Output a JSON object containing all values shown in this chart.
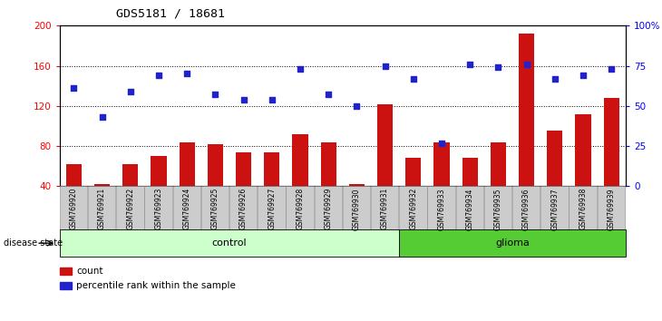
{
  "title": "GDS5181 / 18681",
  "samples": [
    "GSM769920",
    "GSM769921",
    "GSM769922",
    "GSM769923",
    "GSM769924",
    "GSM769925",
    "GSM769926",
    "GSM769927",
    "GSM769928",
    "GSM769929",
    "GSM769930",
    "GSM769931",
    "GSM769932",
    "GSM769933",
    "GSM769934",
    "GSM769935",
    "GSM769936",
    "GSM769937",
    "GSM769938",
    "GSM769939"
  ],
  "count": [
    62,
    42,
    62,
    70,
    84,
    82,
    74,
    74,
    92,
    84,
    42,
    122,
    68,
    84,
    68,
    84,
    192,
    95,
    112,
    128
  ],
  "percentile_pct": [
    61,
    43,
    59,
    69,
    70,
    57,
    54,
    54,
    73,
    57,
    50,
    75,
    67,
    27,
    76,
    74,
    76,
    67,
    69,
    73
  ],
  "control_count": 12,
  "ylim_left": [
    40,
    200
  ],
  "ylim_right": [
    0,
    100
  ],
  "yticks_left": [
    40,
    80,
    120,
    160,
    200
  ],
  "yticks_right": [
    0,
    25,
    50,
    75,
    100
  ],
  "bar_color": "#cc1111",
  "dot_color": "#2222cc",
  "control_color": "#ccffcc",
  "glioma_color": "#55cc33",
  "bg_color": "#cccccc",
  "plot_bg": "#ffffff",
  "disease_label_control": "control",
  "disease_label_glioma": "glioma",
  "legend_count": "count",
  "legend_pct": "percentile rank within the sample",
  "title_font": "monospace"
}
